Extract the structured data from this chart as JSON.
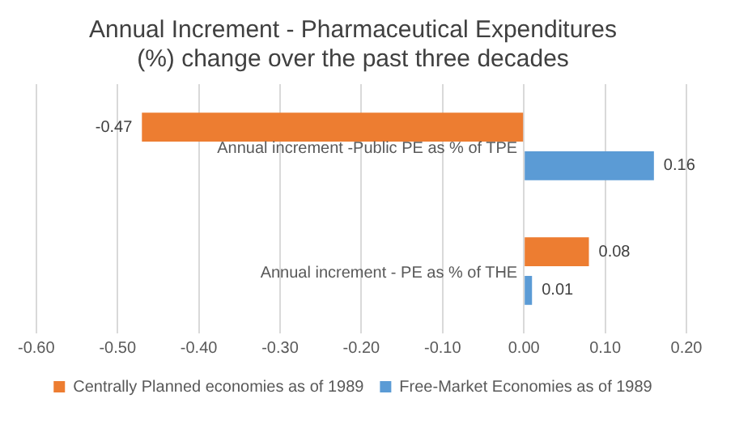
{
  "chart_data": {
    "type": "bar",
    "orientation": "horizontal",
    "title": "Annual Increment - Pharmaceutical Expenditures\n(%) change over the past three decades",
    "categories": [
      "Annual increment -Public PE as % of TPE",
      "Annual increment - PE as % of THE"
    ],
    "series": [
      {
        "name": "Centrally Planned economies as of 1989",
        "color": "#ed7d31",
        "values": [
          -0.47,
          0.08
        ]
      },
      {
        "name": "Free-Market Economies as of 1989",
        "color": "#5b9bd5",
        "values": [
          0.16,
          0.01
        ]
      }
    ],
    "xlim": [
      -0.6,
      0.2
    ],
    "xticks": [
      {
        "value": -0.6,
        "label": "-0.60"
      },
      {
        "value": -0.5,
        "label": "-0.50"
      },
      {
        "value": -0.4,
        "label": "-0.40"
      },
      {
        "value": -0.3,
        "label": "-0.30"
      },
      {
        "value": -0.2,
        "label": "-0.20"
      },
      {
        "value": -0.1,
        "label": "-0.10"
      },
      {
        "value": 0,
        "label": "0.00"
      },
      {
        "value": 0.1,
        "label": "0.10"
      },
      {
        "value": 0.2,
        "label": "0.20"
      }
    ],
    "grid": "x",
    "legend": "bottom",
    "data_labels": true
  }
}
